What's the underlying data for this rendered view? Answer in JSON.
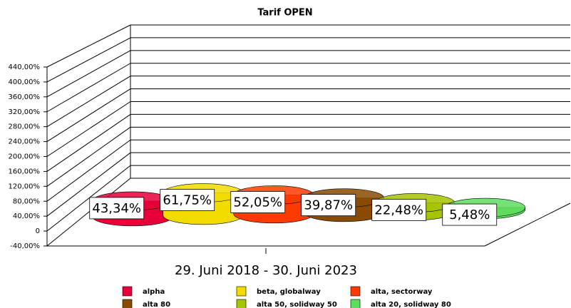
{
  "chart_data": {
    "type": "bar",
    "title": "Tarif OPEN",
    "categories": [
      "29. Juni 2018 - 30. Juni 2023"
    ],
    "series": [
      {
        "name": "alpha",
        "color": "#e8003a",
        "values": [
          43.34
        ],
        "value_labels": [
          "43,34%"
        ]
      },
      {
        "name": "beta, globalway",
        "color": "#f2dc00",
        "values": [
          61.75
        ],
        "value_labels": [
          "61,75%"
        ]
      },
      {
        "name": "alta, sectorway",
        "color": "#ff3a00",
        "values": [
          52.05
        ],
        "value_labels": [
          "52,05%"
        ]
      },
      {
        "name": "alta 80",
        "color": "#8a4a00",
        "values": [
          39.87
        ],
        "value_labels": [
          "39,87%"
        ]
      },
      {
        "name": "alta 50, solidway 50",
        "color": "#a6c400",
        "values": [
          22.48
        ],
        "value_labels": [
          "22,48%"
        ]
      },
      {
        "name": "alta 20, solidway 80",
        "color": "#5edc5e",
        "values": [
          5.48
        ],
        "value_labels": [
          "5,48%"
        ]
      }
    ],
    "ylim": [
      -40,
      440
    ],
    "yticks": [
      {
        "value": -40,
        "label": "-40,00%"
      },
      0,
      {
        "value": 40,
        "label": "40,00%"
      },
      {
        "value": 80,
        "label": "80,00%"
      },
      {
        "value": 120,
        "label": "120,00%"
      },
      {
        "value": 160,
        "label": "160,00%"
      },
      {
        "value": 200,
        "label": "200,00%"
      },
      {
        "value": 240,
        "label": "240,00%"
      },
      {
        "value": 280,
        "label": "280,00%"
      },
      {
        "value": 320,
        "label": "320,00%"
      },
      {
        "value": 360,
        "label": "360,00%"
      },
      {
        "value": 400,
        "label": "400,00%"
      },
      {
        "value": 440,
        "label": "440,00%"
      }
    ],
    "grid": true
  }
}
